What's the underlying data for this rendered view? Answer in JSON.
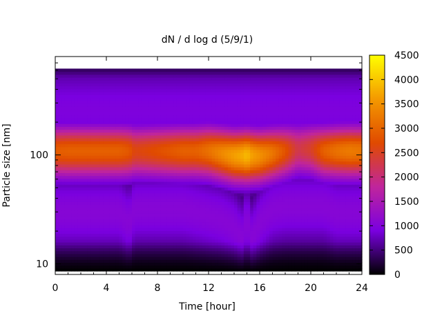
{
  "chart_data": {
    "type": "heatmap",
    "title": "dN / d log d (5/9/1)",
    "xlabel": "Time [hour]",
    "ylabel": "Particle size [nm]",
    "xlim": [
      0,
      24
    ],
    "ylim": [
      8,
      800
    ],
    "y_scale": "log",
    "x_ticks": [
      0,
      4,
      8,
      12,
      16,
      20,
      24
    ],
    "y_ticks": [
      10,
      100
    ],
    "colorbar": {
      "min": 0,
      "max": 4500,
      "ticks": [
        0,
        500,
        1000,
        1500,
        2000,
        2500,
        3000,
        3500,
        4000,
        4500
      ],
      "palette": "gnuplot",
      "stops": [
        "#000000",
        "#7a00e0",
        "#c0259c",
        "#e04a00",
        "#f49900",
        "#ffff00"
      ]
    },
    "grid": false,
    "legend": "colorbar-right",
    "time_profile": {
      "hours": [
        0,
        1,
        2,
        3,
        4,
        5,
        5.8,
        6.2,
        7,
        8,
        9,
        10,
        11,
        12,
        13,
        14,
        14.6,
        15,
        15.4,
        16,
        17,
        18,
        19,
        20,
        21,
        22,
        23,
        24
      ],
      "mode_peak": [
        2900,
        2950,
        2950,
        2950,
        2950,
        2950,
        2850,
        2600,
        2650,
        2750,
        2850,
        2950,
        2950,
        3150,
        3400,
        3650,
        3750,
        3900,
        3650,
        3500,
        3200,
        2800,
        2250,
        2450,
        2950,
        3150,
        3250,
        3200
      ],
      "mode_center_nm": [
        110,
        110,
        110,
        110,
        110,
        110,
        110,
        110,
        110,
        110,
        110,
        110,
        110,
        110,
        105,
        100,
        100,
        100,
        100,
        100,
        105,
        110,
        115,
        115,
        110,
        110,
        110,
        110
      ],
      "lower_tail_nm": [
        30,
        30,
        30,
        30,
        30,
        30,
        24,
        32,
        32,
        32,
        32,
        32,
        30,
        28,
        26,
        22,
        17,
        25,
        17,
        24,
        32,
        34,
        34,
        34,
        34,
        30,
        30,
        30
      ],
      "coarse_level": [
        950,
        950,
        950,
        950,
        950,
        950,
        950,
        950,
        950,
        950,
        950,
        950,
        950,
        950,
        950,
        950,
        950,
        950,
        950,
        950,
        950,
        950,
        950,
        950,
        950,
        950,
        950,
        950
      ]
    }
  }
}
